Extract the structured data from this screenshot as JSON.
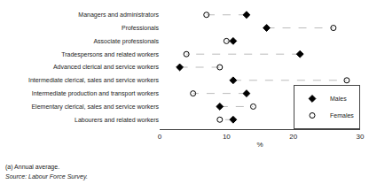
{
  "chart_data": {
    "type": "dot",
    "orientation": "horizontal",
    "categories": [
      "Managers and administrators",
      "Professionals",
      "Associate professionals",
      "Tradespersons and related workers",
      "Advanced clerical and service workers",
      "Intermediate clerical, sales and service workers",
      "Intermediate production and transport workers",
      "Elementary clerical, sales and service workers",
      "Labourers and related workers"
    ],
    "series": [
      {
        "name": "Males",
        "color": "black",
        "marker": "diamond",
        "values": [
          13,
          16,
          11,
          21,
          3,
          11,
          13,
          9,
          11
        ]
      },
      {
        "name": "Females",
        "color": "black",
        "marker": "circle-open",
        "values": [
          7,
          26,
          10,
          4,
          9,
          28,
          5,
          14,
          9
        ]
      }
    ],
    "color": "#bbbbbb",
    "line_style": "dash",
    "xlabel": "%",
    "xlim": [
      0,
      30
    ],
    "xticks": [
      0,
      10,
      20,
      30
    ],
    "grid": false,
    "legend": "lower right",
    "footnotes": [
      "(a) Annual average.",
      "Source: Labour Force Survey."
    ]
  }
}
